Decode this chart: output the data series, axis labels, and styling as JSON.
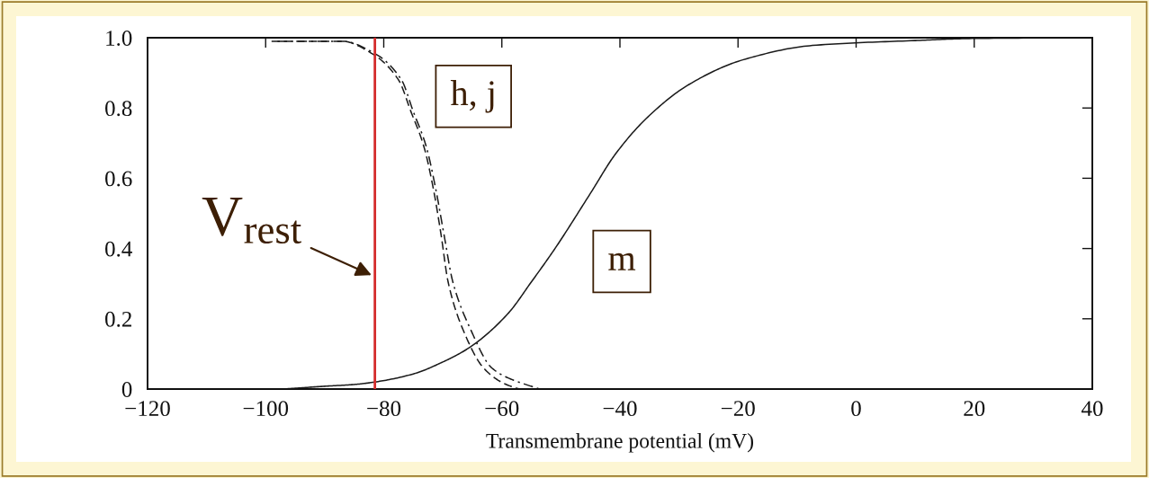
{
  "chart_data": {
    "type": "line",
    "xlabel": "Transmembrane potential (mV)",
    "xlim": [
      -120,
      40
    ],
    "ylim": [
      0,
      1
    ],
    "xticks": [
      {
        "value": -120,
        "label": "−120"
      },
      {
        "value": -100,
        "label": "−100"
      },
      {
        "value": -80,
        "label": "−80"
      },
      {
        "value": -60,
        "label": "−60"
      },
      {
        "value": -40,
        "label": "−40"
      },
      {
        "value": -20,
        "label": "−20"
      },
      0,
      20,
      40
    ],
    "yticks": [
      0,
      0.2,
      0.4,
      0.6,
      0.8,
      {
        "value": 1,
        "label": "1.0"
      }
    ],
    "series": [
      {
        "color": "#1a1a1a",
        "line_style": "solid",
        "x": [
          -97,
          -90,
          -85,
          -81.5,
          -75,
          -70,
          -65.5,
          -59,
          -55,
          -51,
          -45,
          -40.8,
          -35.3,
          -28.3,
          -19.2,
          -7.4,
          10,
          20,
          40
        ],
        "values": [
          0,
          0.008,
          0.013,
          0.02,
          0.043,
          0.077,
          0.118,
          0.214,
          0.305,
          0.4,
          0.557,
          0.668,
          0.774,
          0.867,
          0.937,
          0.978,
          0.992,
          0.998,
          1.0
        ]
      },
      {
        "color": "#1a1a1a",
        "line_style": "dashed",
        "x": [
          -99,
          -87,
          -82,
          -77.5,
          -75.4,
          -73.2,
          -71.6,
          -70.3,
          -69.1,
          -66.6,
          -63.1,
          -60.1,
          -58,
          -57
        ],
        "values": [
          0.99,
          0.99,
          0.955,
          0.88,
          0.79,
          0.69,
          0.57,
          0.44,
          0.305,
          0.17,
          0.06,
          0.02,
          0.005,
          0
        ]
      },
      {
        "color": "#1a1a1a",
        "line_style": "dashdot",
        "x": [
          -98,
          -87,
          -81.5,
          -77,
          -75,
          -72.8,
          -71.2,
          -69.8,
          -68.3,
          -65.3,
          -61.7,
          -58,
          -56.3,
          -53.6
        ],
        "values": [
          0.99,
          0.99,
          0.955,
          0.88,
          0.79,
          0.69,
          0.57,
          0.44,
          0.305,
          0.17,
          0.06,
          0.025,
          0.015,
          0
        ]
      }
    ],
    "ref_lines": [
      {
        "axis": "x",
        "value": -81.5,
        "label": "V$_{rest}$",
        "color": "#d42b2b"
      }
    ],
    "annotations": [
      "h, j",
      "m"
    ]
  }
}
